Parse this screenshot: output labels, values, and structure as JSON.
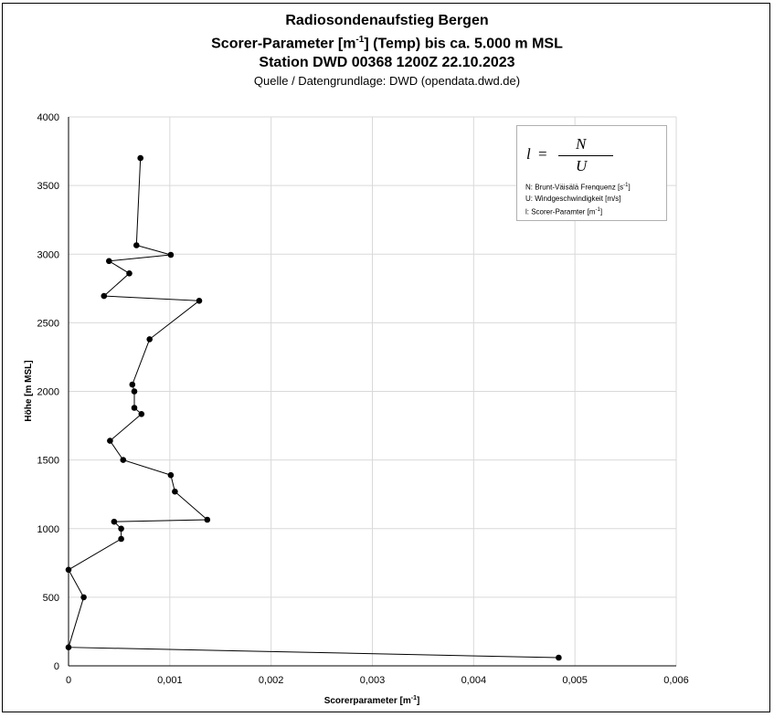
{
  "chart_data": {
    "type": "scatter",
    "title_lines": [
      "Radiosondenaufstieg Bergen",
      "Station DWD 00368 1200Z 22.10.2023"
    ],
    "title_line2_parts": [
      "Scorer-Parameter [m",
      "-1",
      "] (Temp) bis ca. 5.000 m MSL"
    ],
    "source": "Quelle / Datengrundlage: DWD (opendata.dwd.de)",
    "xlabel_parts": [
      "Scorerparameter [m",
      "-1",
      "]"
    ],
    "ylabel": "Höhe [m MSL]",
    "xlim": [
      0,
      0.006
    ],
    "ylim": [
      0,
      4000
    ],
    "x_ticks": [
      "0",
      "0,001",
      "0,002",
      "0,003",
      "0,004",
      "0,005",
      "0,006"
    ],
    "y_ticks": [
      "0",
      "500",
      "1000",
      "1500",
      "2000",
      "2500",
      "3000",
      "3500",
      "4000"
    ],
    "grid": true,
    "line_color": "#000000",
    "marker_color": "#000000",
    "grid_color": "#d9d9d9",
    "series": [
      {
        "points": [
          [
            0.00484,
            60
          ],
          [
            0.0,
            135
          ],
          [
            0.00015,
            500
          ],
          [
            0.0,
            700
          ],
          [
            0.00052,
            925
          ],
          [
            0.00052,
            1000
          ],
          [
            0.00045,
            1050
          ],
          [
            0.00137,
            1065
          ],
          [
            0.00105,
            1270
          ],
          [
            0.00101,
            1390
          ],
          [
            0.00054,
            1500
          ],
          [
            0.00041,
            1640
          ],
          [
            0.00072,
            1835
          ],
          [
            0.00065,
            1880
          ],
          [
            0.00065,
            2000
          ],
          [
            0.00063,
            2050
          ],
          [
            0.0008,
            2380
          ],
          [
            0.00129,
            2660
          ],
          [
            0.00035,
            2695
          ],
          [
            0.0006,
            2860
          ],
          [
            0.0004,
            2950
          ],
          [
            0.00101,
            2995
          ],
          [
            0.00067,
            3065
          ],
          [
            0.00071,
            3700
          ]
        ]
      }
    ],
    "legend_box": {
      "formula": {
        "lhs": "l",
        "eq": "=",
        "num": "N",
        "den": "U"
      },
      "lines": [
        {
          "prefix": "N: Brunt-Väisälä Frenquenz [s",
          "sup": "-1",
          "suffix": "]"
        },
        {
          "prefix": "U: Windgeschwindigkeit [m/s]",
          "sup": "",
          "suffix": ""
        },
        {
          "prefix": "l: Scorer-Paramter [m",
          "sup": "-1",
          "suffix": "]"
        }
      ]
    }
  }
}
